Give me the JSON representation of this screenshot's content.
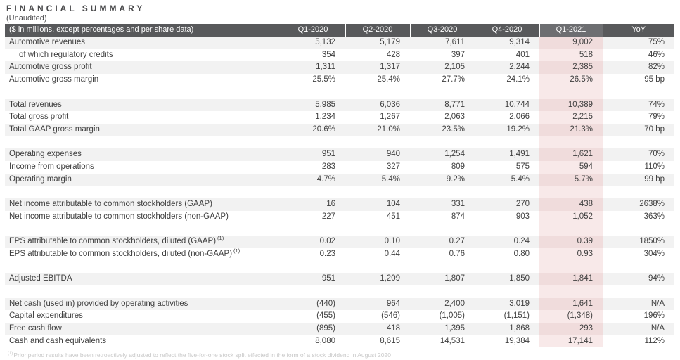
{
  "title": "FINANCIAL SUMMARY",
  "subtitle": "(Unaudited)",
  "table": {
    "header": [
      "($ in millions, except percentages and per share data)",
      "Q1-2020",
      "Q2-2020",
      "Q3-2020",
      "Q4-2020",
      "Q1-2021",
      "YoY"
    ],
    "highlight_column": "Q1-2021",
    "rows": [
      {
        "label": "Automotive revenues",
        "values": [
          "5,132",
          "5,179",
          "7,611",
          "9,314",
          "9,002",
          "75%"
        ]
      },
      {
        "label": "of which regulatory credits",
        "indent": true,
        "values": [
          "354",
          "428",
          "397",
          "401",
          "518",
          "46%"
        ]
      },
      {
        "label": "Automotive gross profit",
        "values": [
          "1,311",
          "1,317",
          "2,105",
          "2,244",
          "2,385",
          "82%"
        ]
      },
      {
        "label": "Automotive gross margin",
        "values": [
          "25.5%",
          "25.4%",
          "27.7%",
          "24.1%",
          "26.5%",
          "95 bp"
        ]
      },
      {
        "blank": true
      },
      {
        "label": "Total revenues",
        "values": [
          "5,985",
          "6,036",
          "8,771",
          "10,744",
          "10,389",
          "74%"
        ]
      },
      {
        "label": "Total gross profit",
        "values": [
          "1,234",
          "1,267",
          "2,063",
          "2,066",
          "2,215",
          "79%"
        ]
      },
      {
        "label": "Total GAAP gross margin",
        "values": [
          "20.6%",
          "21.0%",
          "23.5%",
          "19.2%",
          "21.3%",
          "70 bp"
        ]
      },
      {
        "blank": true
      },
      {
        "label": "Operating expenses",
        "values": [
          "951",
          "940",
          "1,254",
          "1,491",
          "1,621",
          "70%"
        ]
      },
      {
        "label": "Income from operations",
        "values": [
          "283",
          "327",
          "809",
          "575",
          "594",
          "110%"
        ]
      },
      {
        "label": "Operating margin",
        "values": [
          "4.7%",
          "5.4%",
          "9.2%",
          "5.4%",
          "5.7%",
          "99 bp"
        ]
      },
      {
        "blank": true
      },
      {
        "label": "Net income attributable to common stockholders (GAAP)",
        "values": [
          "16",
          "104",
          "331",
          "270",
          "438",
          "2638%"
        ]
      },
      {
        "label": "Net income attributable to common stockholders (non-GAAP)",
        "values": [
          "227",
          "451",
          "874",
          "903",
          "1,052",
          "363%"
        ]
      },
      {
        "blank": true
      },
      {
        "label": "EPS attributable to common stockholders, diluted (GAAP)",
        "label_sup": "(1)",
        "values": [
          "0.02",
          "0.10",
          "0.27",
          "0.24",
          "0.39",
          "1850%"
        ]
      },
      {
        "label": "EPS attributable to common stockholders, diluted (non-GAAP)",
        "label_sup": "(1)",
        "values": [
          "0.23",
          "0.44",
          "0.76",
          "0.80",
          "0.93",
          "304%"
        ]
      },
      {
        "blank": true
      },
      {
        "label": "Adjusted EBITDA",
        "values": [
          "951",
          "1,209",
          "1,807",
          "1,850",
          "1,841",
          "94%"
        ]
      },
      {
        "blank": true
      },
      {
        "label": "Net cash (used in) provided by operating activities",
        "values": [
          "(440)",
          "964",
          "2,400",
          "3,019",
          "1,641",
          "N/A"
        ]
      },
      {
        "label": "Capital expenditures",
        "values": [
          "(455)",
          "(546)",
          "(1,005)",
          "(1,151)",
          "(1,348)",
          "196%"
        ]
      },
      {
        "label": "Free cash flow",
        "values": [
          "(895)",
          "418",
          "1,395",
          "1,868",
          "293",
          "N/A"
        ]
      },
      {
        "label": "Cash and cash equivalents",
        "values": [
          "8,080",
          "8,615",
          "14,531",
          "19,384",
          "17,141",
          "112%"
        ]
      }
    ]
  },
  "footnote": {
    "marker": "(1)",
    "text": "Prior period results have been retroactively adjusted to reflect the five-for-one stock split effected in the form of a stock dividend in August 2020"
  },
  "colors": {
    "header_bg": "#58595b",
    "header_highlight_bg": "#6d6e71",
    "band_bg": "#f2f2f2",
    "highlight_band_bg": "#f0dcdc",
    "highlight_light_bg": "#f8e9e9",
    "text": "#404040",
    "header_text": "#ffffff",
    "footnote_text": "#c9c9c9"
  }
}
